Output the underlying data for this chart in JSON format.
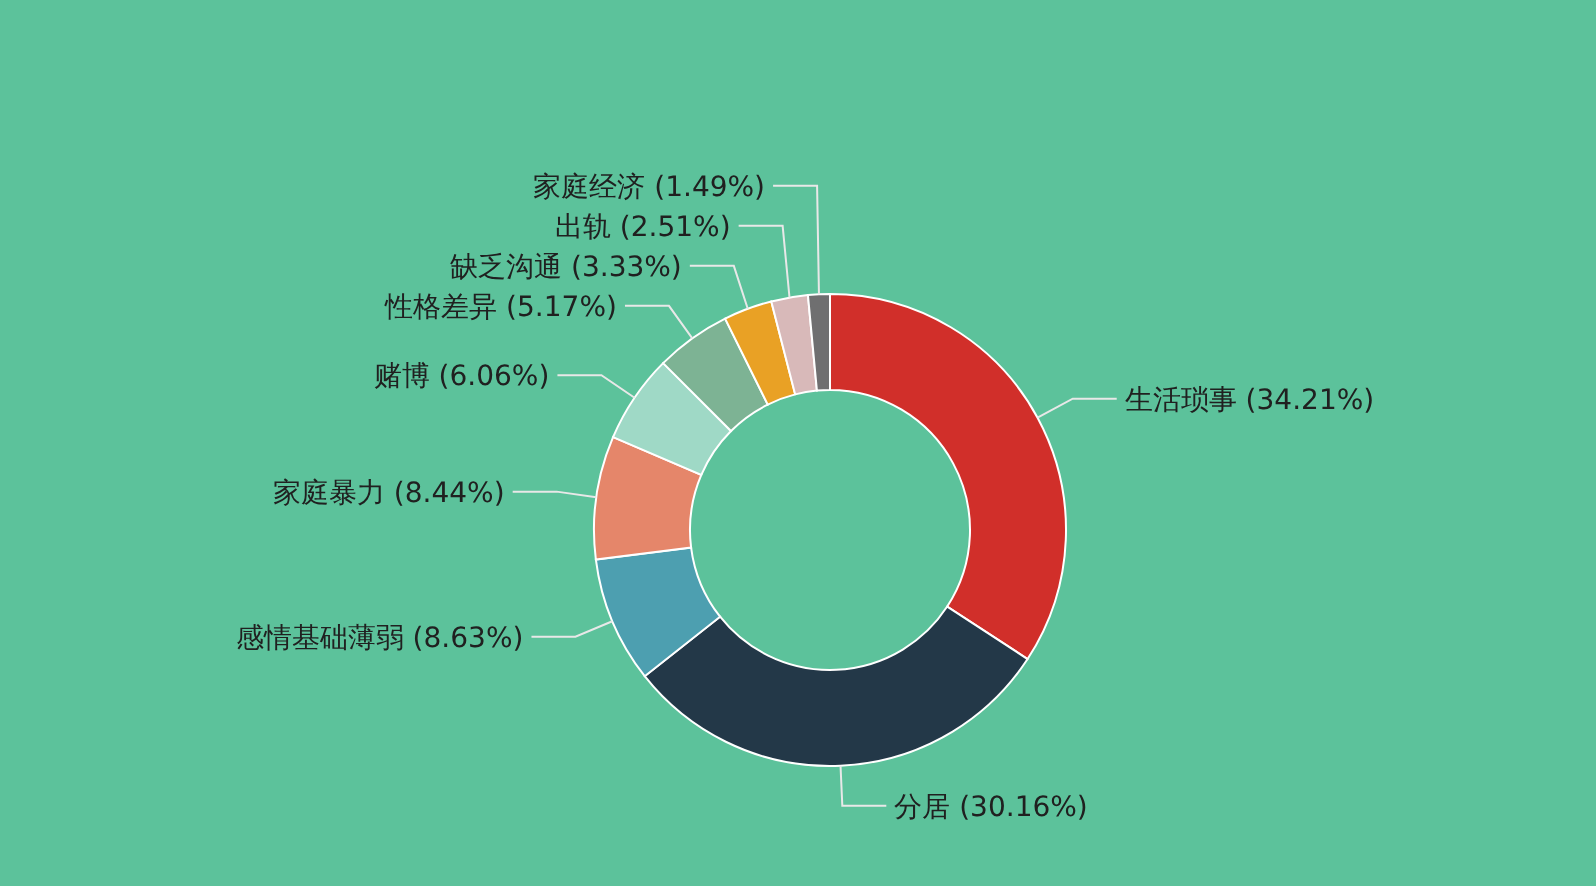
{
  "chart_data": {
    "type": "donut",
    "categories": [
      "生活琐事",
      "分居",
      "感情基础薄弱",
      "家庭暴力",
      "赌博",
      "性格差异",
      "缺乏沟通",
      "出轨",
      "家庭经济"
    ],
    "values": [
      34.21,
      30.16,
      8.63,
      8.44,
      6.06,
      5.17,
      3.33,
      2.51,
      1.49
    ],
    "value_labels": [
      "(34.21%)",
      "(30.16%)",
      "(8.63%)",
      "(8.44%)",
      "(6.06%)",
      "(5.17%)",
      "(3.33%)",
      "(2.51%)",
      "(1.49%)"
    ],
    "colors": [
      "#d12f2a",
      "#233848",
      "#4d9fb0",
      "#e5866a",
      "#9fd9c6",
      "#7db394",
      "#e9a125",
      "#d8b9b9",
      "#6f6f70"
    ],
    "legend": false
  }
}
